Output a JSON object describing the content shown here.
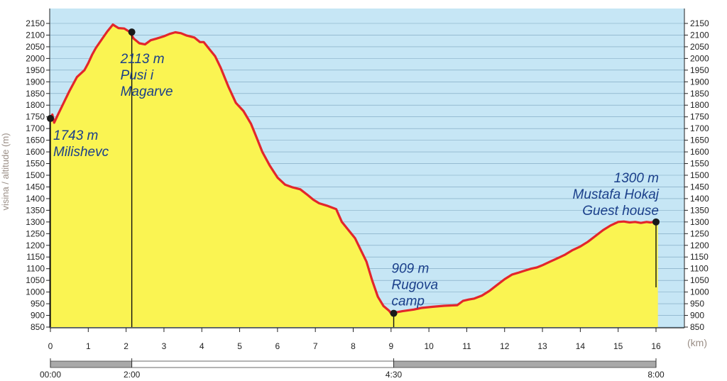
{
  "chart_data": {
    "type": "area",
    "ylabel": "visina / altitude (m)",
    "x_unit": "(km)",
    "xlim": [
      0,
      16
    ],
    "ylim": [
      850,
      2150
    ],
    "y_ticks": [
      850,
      900,
      950,
      1000,
      1050,
      1100,
      1150,
      1200,
      1250,
      1300,
      1350,
      1400,
      1450,
      1500,
      1550,
      1600,
      1650,
      1700,
      1750,
      1800,
      1850,
      1900,
      1950,
      2000,
      2050,
      2100,
      2150
    ],
    "x_ticks": [
      0,
      1,
      2,
      3,
      4,
      5,
      6,
      7,
      8,
      9,
      10,
      11,
      12,
      13,
      14,
      15,
      16
    ],
    "grid": true,
    "colors": {
      "sky": "#c6e6f5",
      "fill": "#faf452",
      "line": "#e3262b",
      "grid": "#7aa3bd",
      "annotation": "#1a3f8a"
    },
    "series": [
      {
        "x": [
          0,
          0.05,
          0.1,
          0.2,
          0.35,
          0.5,
          0.7,
          0.9,
          1.0,
          1.1,
          1.2,
          1.35,
          1.5,
          1.65,
          1.72,
          1.8,
          1.95,
          2.1,
          2.2,
          2.35,
          2.5,
          2.65,
          2.8,
          3.0,
          3.15,
          3.3,
          3.45,
          3.6,
          3.8,
          3.95,
          4.05,
          4.2,
          4.35,
          4.5,
          4.7,
          4.9,
          5.1,
          5.3,
          5.45,
          5.6,
          5.8,
          6.0,
          6.2,
          6.4,
          6.6,
          6.8,
          6.95,
          7.1,
          7.3,
          7.55,
          7.7,
          7.9,
          8.05,
          8.2,
          8.35,
          8.5,
          8.65,
          8.8,
          8.95,
          9.0,
          9.1,
          9.3,
          9.6,
          9.8,
          10.1,
          10.4,
          10.75,
          10.9,
          11.05,
          11.2,
          11.4,
          11.6,
          11.8,
          12.0,
          12.2,
          12.35,
          12.5,
          12.7,
          12.85,
          13.0,
          13.2,
          13.4,
          13.6,
          13.8,
          14.0,
          14.2,
          14.4,
          14.6,
          14.8,
          15.0,
          15.15,
          15.3,
          15.45,
          15.6,
          15.75,
          15.85,
          15.95,
          16.05
        ],
        "values": [
          1743,
          1760,
          1725,
          1760,
          1810,
          1860,
          1920,
          1950,
          1980,
          2015,
          2045,
          2080,
          2115,
          2145,
          2138,
          2130,
          2128,
          2113,
          2085,
          2065,
          2060,
          2078,
          2085,
          2095,
          2105,
          2112,
          2108,
          2098,
          2090,
          2070,
          2070,
          2040,
          2010,
          1960,
          1880,
          1810,
          1775,
          1720,
          1660,
          1600,
          1540,
          1490,
          1460,
          1448,
          1440,
          1415,
          1395,
          1380,
          1370,
          1355,
          1300,
          1260,
          1230,
          1180,
          1130,
          1050,
          980,
          940,
          920,
          909,
          912,
          918,
          925,
          932,
          937,
          941,
          944,
          962,
          968,
          972,
          985,
          1005,
          1030,
          1055,
          1075,
          1082,
          1090,
          1100,
          1105,
          1115,
          1130,
          1145,
          1160,
          1180,
          1195,
          1215,
          1240,
          1265,
          1285,
          1300,
          1302,
          1298,
          1300,
          1296,
          1300,
          1298,
          1300,
          1300
        ]
      }
    ],
    "annotations": [
      {
        "x": 0,
        "y": 1743,
        "line_to": 850,
        "lines": [
          "1743 m",
          "Milishevc"
        ]
      },
      {
        "x": 2.15,
        "y": 2113,
        "line_to": 850,
        "lines": [
          "2113 m",
          "Pusi i",
          "Magarve"
        ]
      },
      {
        "x": 9.07,
        "y": 909,
        "line_to": 850,
        "lines": [
          "909 m",
          "Rugova",
          "camp"
        ]
      },
      {
        "x": 16.0,
        "y": 1300,
        "line_to": 1020,
        "lines": [
          "1300 m",
          "Mustafa Hokaj",
          "Guest house"
        ]
      }
    ],
    "time_axis": {
      "labels": [
        "00:00",
        "2:00",
        "4:30",
        "8:00"
      ],
      "x": [
        0,
        2.15,
        9.07,
        16.0
      ]
    }
  }
}
